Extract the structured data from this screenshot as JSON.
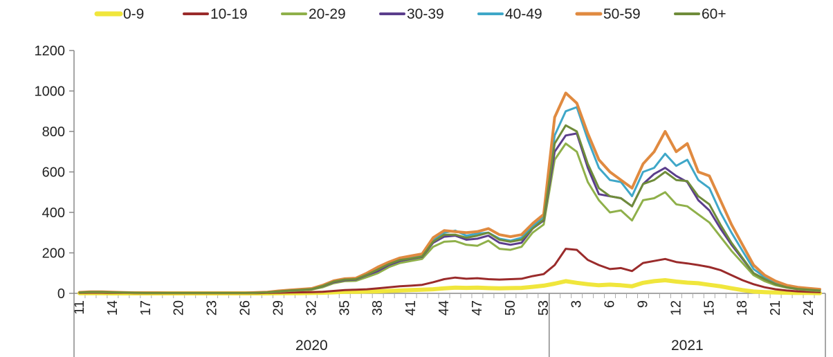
{
  "chart_data": {
    "type": "line",
    "title": "",
    "xlabel": "",
    "ylabel": "",
    "ylim": [
      0,
      1200
    ],
    "yticks": [
      0,
      200,
      400,
      600,
      800,
      1000,
      1200
    ],
    "grid": false,
    "legend_position": "top",
    "x": [
      "2020-W11",
      "2020-W12",
      "2020-W13",
      "2020-W14",
      "2020-W15",
      "2020-W16",
      "2020-W17",
      "2020-W18",
      "2020-W19",
      "2020-W20",
      "2020-W21",
      "2020-W22",
      "2020-W23",
      "2020-W24",
      "2020-W25",
      "2020-W26",
      "2020-W27",
      "2020-W28",
      "2020-W29",
      "2020-W30",
      "2020-W31",
      "2020-W32",
      "2020-W33",
      "2020-W34",
      "2020-W35",
      "2020-W36",
      "2020-W37",
      "2020-W38",
      "2020-W39",
      "2020-W40",
      "2020-W41",
      "2020-W42",
      "2020-W43",
      "2020-W44",
      "2020-W45",
      "2020-W46",
      "2020-W47",
      "2020-W48",
      "2020-W49",
      "2020-W50",
      "2020-W51",
      "2020-W52",
      "2020-W53",
      "2021-W01",
      "2021-W02",
      "2021-W03",
      "2021-W04",
      "2021-W05",
      "2021-W06",
      "2021-W07",
      "2021-W08",
      "2021-W09",
      "2021-W10",
      "2021-W11",
      "2021-W12",
      "2021-W13",
      "2021-W14",
      "2021-W15",
      "2021-W16",
      "2021-W17",
      "2021-W18",
      "2021-W19",
      "2021-W20",
      "2021-W21",
      "2021-W22",
      "2021-W23",
      "2021-W24",
      "2021-W25"
    ],
    "x_tick_labels": [
      {
        "index": 0,
        "label": "11"
      },
      {
        "index": 3,
        "label": "14"
      },
      {
        "index": 6,
        "label": "17"
      },
      {
        "index": 9,
        "label": "20"
      },
      {
        "index": 12,
        "label": "23"
      },
      {
        "index": 15,
        "label": "26"
      },
      {
        "index": 18,
        "label": "29"
      },
      {
        "index": 21,
        "label": "32"
      },
      {
        "index": 24,
        "label": "35"
      },
      {
        "index": 27,
        "label": "38"
      },
      {
        "index": 30,
        "label": "41"
      },
      {
        "index": 33,
        "label": "44"
      },
      {
        "index": 36,
        "label": "47"
      },
      {
        "index": 39,
        "label": "50"
      },
      {
        "index": 42,
        "label": "53"
      },
      {
        "index": 45,
        "label": "3"
      },
      {
        "index": 48,
        "label": "6"
      },
      {
        "index": 51,
        "label": "9"
      },
      {
        "index": 54,
        "label": "12"
      },
      {
        "index": 57,
        "label": "15"
      },
      {
        "index": 60,
        "label": "18"
      },
      {
        "index": 63,
        "label": "21"
      },
      {
        "index": 66,
        "label": "24"
      }
    ],
    "year_groups": [
      {
        "label": "2020",
        "start": 0,
        "end": 42
      },
      {
        "label": "2021",
        "start": 43,
        "end": 67
      }
    ],
    "series": [
      {
        "name": "0-9",
        "color": "#f0e63c",
        "width": 6,
        "values": [
          1,
          1,
          1,
          0,
          0,
          0,
          0,
          0,
          0,
          0,
          0,
          0,
          0,
          0,
          0,
          0,
          0,
          0,
          1,
          1,
          1,
          2,
          3,
          5,
          8,
          8,
          9,
          10,
          12,
          14,
          16,
          18,
          20,
          25,
          28,
          27,
          28,
          26,
          25,
          26,
          27,
          32,
          38,
          48,
          60,
          52,
          45,
          40,
          43,
          40,
          35,
          52,
          60,
          65,
          58,
          53,
          50,
          42,
          35,
          25,
          16,
          9,
          6,
          4,
          3,
          2,
          2,
          1
        ]
      },
      {
        "name": "10-19",
        "color": "#9a2b2b",
        "width": 3,
        "values": [
          2,
          3,
          3,
          2,
          2,
          1,
          1,
          1,
          1,
          1,
          1,
          1,
          1,
          1,
          1,
          1,
          1,
          2,
          3,
          4,
          5,
          6,
          8,
          12,
          16,
          18,
          20,
          25,
          30,
          35,
          38,
          42,
          55,
          70,
          78,
          72,
          75,
          70,
          68,
          70,
          72,
          85,
          95,
          140,
          220,
          215,
          165,
          140,
          120,
          125,
          110,
          150,
          160,
          170,
          155,
          148,
          140,
          130,
          115,
          90,
          65,
          45,
          30,
          20,
          14,
          10,
          8,
          6
        ]
      },
      {
        "name": "20-29",
        "color": "#8fb04a",
        "width": 3,
        "values": [
          4,
          6,
          6,
          4,
          3,
          2,
          2,
          2,
          2,
          2,
          2,
          2,
          2,
          2,
          2,
          2,
          3,
          4,
          8,
          12,
          15,
          18,
          30,
          50,
          60,
          62,
          80,
          100,
          130,
          150,
          160,
          170,
          230,
          255,
          258,
          240,
          235,
          260,
          220,
          215,
          230,
          300,
          340,
          660,
          740,
          700,
          550,
          460,
          400,
          410,
          360,
          460,
          470,
          500,
          440,
          430,
          390,
          350,
          280,
          210,
          150,
          90,
          60,
          40,
          28,
          20,
          15,
          12
        ]
      },
      {
        "name": "30-39",
        "color": "#5b3e8c",
        "width": 3,
        "values": [
          4,
          7,
          7,
          5,
          4,
          3,
          2,
          2,
          2,
          2,
          2,
          2,
          2,
          2,
          2,
          2,
          3,
          5,
          10,
          14,
          17,
          20,
          35,
          55,
          65,
          68,
          90,
          110,
          140,
          160,
          170,
          180,
          250,
          280,
          285,
          265,
          270,
          285,
          250,
          240,
          250,
          320,
          360,
          700,
          780,
          790,
          620,
          490,
          480,
          470,
          430,
          540,
          590,
          620,
          580,
          550,
          460,
          410,
          320,
          240,
          170,
          100,
          70,
          45,
          30,
          22,
          18,
          14
        ]
      },
      {
        "name": "40-49",
        "color": "#3fa7c8",
        "width": 3,
        "values": [
          5,
          8,
          8,
          6,
          4,
          3,
          3,
          3,
          2,
          2,
          2,
          2,
          2,
          2,
          2,
          2,
          3,
          6,
          11,
          15,
          18,
          22,
          38,
          60,
          70,
          72,
          95,
          120,
          150,
          170,
          180,
          190,
          260,
          300,
          310,
          285,
          295,
          300,
          270,
          260,
          275,
          330,
          380,
          780,
          900,
          920,
          760,
          620,
          560,
          550,
          480,
          600,
          620,
          690,
          630,
          660,
          560,
          520,
          400,
          300,
          210,
          120,
          80,
          50,
          34,
          25,
          20,
          16
        ]
      },
      {
        "name": "50-59",
        "color": "#e08a40",
        "width": 4,
        "values": [
          5,
          8,
          8,
          6,
          4,
          3,
          3,
          3,
          2,
          2,
          2,
          2,
          2,
          2,
          2,
          2,
          4,
          6,
          12,
          16,
          20,
          24,
          40,
          62,
          72,
          75,
          100,
          130,
          155,
          175,
          185,
          195,
          275,
          310,
          305,
          300,
          305,
          320,
          290,
          280,
          290,
          345,
          390,
          870,
          990,
          940,
          790,
          660,
          600,
          560,
          520,
          640,
          700,
          800,
          700,
          740,
          600,
          580,
          460,
          340,
          240,
          140,
          90,
          60,
          40,
          30,
          25,
          20
        ]
      },
      {
        "name": "60+",
        "color": "#6f8c3a",
        "width": 3,
        "values": [
          4,
          7,
          7,
          5,
          4,
          3,
          2,
          2,
          2,
          2,
          2,
          2,
          2,
          2,
          2,
          2,
          3,
          5,
          10,
          14,
          17,
          21,
          36,
          58,
          68,
          70,
          92,
          118,
          145,
          165,
          172,
          182,
          255,
          290,
          290,
          275,
          285,
          300,
          265,
          255,
          265,
          320,
          365,
          740,
          830,
          800,
          640,
          520,
          480,
          470,
          430,
          540,
          560,
          600,
          560,
          555,
          480,
          440,
          340,
          250,
          175,
          100,
          70,
          45,
          30,
          22,
          18,
          14
        ]
      }
    ]
  }
}
